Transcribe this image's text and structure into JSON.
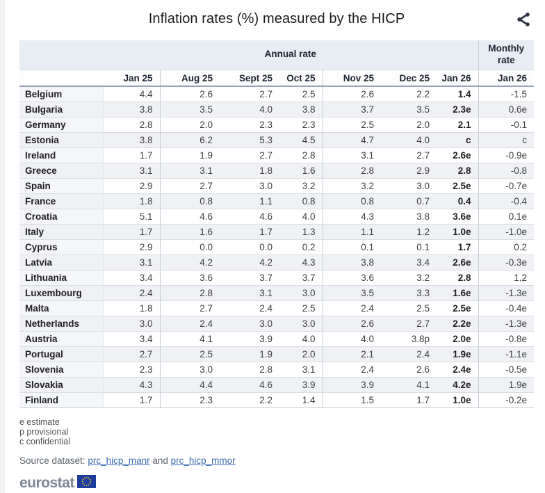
{
  "header": {
    "title": "Inflation rates (%) measured by the HICP"
  },
  "table": {
    "annual_group_label": "Annual rate",
    "monthly_group_label": "Monthly rate",
    "annual_columns": [
      "Jan 25",
      "Aug 25",
      "Sept 25",
      "Oct 25",
      "Nov 25",
      "Dec 25",
      "Jan 26"
    ],
    "monthly_column": "Jan 26",
    "rows": [
      {
        "country": "Belgium",
        "values": [
          "4.4",
          "2.6",
          "2.7",
          "2.5",
          "2.6",
          "2.2",
          "1.4",
          "-1.5"
        ]
      },
      {
        "country": "Bulgaria",
        "values": [
          "3.8",
          "3.5",
          "4.0",
          "3.8",
          "3.7",
          "3.5",
          "2.3e",
          "0.6e"
        ]
      },
      {
        "country": "Germany",
        "values": [
          "2.8",
          "2.0",
          "2.3",
          "2.3",
          "2.5",
          "2.0",
          "2.1",
          "-0.1"
        ]
      },
      {
        "country": "Estonia",
        "values": [
          "3.8",
          "6.2",
          "5.3",
          "4.5",
          "4.7",
          "4.0",
          "c",
          "c"
        ]
      },
      {
        "country": "Ireland",
        "values": [
          "1.7",
          "1.9",
          "2.7",
          "2.8",
          "3.1",
          "2.7",
          "2.6e",
          "-0.9e"
        ]
      },
      {
        "country": "Greece",
        "values": [
          "3.1",
          "3.1",
          "1.8",
          "1.6",
          "2.8",
          "2.9",
          "2.8",
          "-0.8"
        ]
      },
      {
        "country": "Spain",
        "values": [
          "2.9",
          "2.7",
          "3.0",
          "3.2",
          "3.2",
          "3.0",
          "2.5e",
          "-0.7e"
        ]
      },
      {
        "country": "France",
        "values": [
          "1.8",
          "0.8",
          "1.1",
          "0.8",
          "0.8",
          "0.7",
          "0.4",
          "-0.4"
        ]
      },
      {
        "country": "Croatia",
        "values": [
          "5.1",
          "4.6",
          "4.6",
          "4.0",
          "4.3",
          "3.8",
          "3.6e",
          "0.1e"
        ]
      },
      {
        "country": "Italy",
        "values": [
          "1.7",
          "1.6",
          "1.7",
          "1.3",
          "1.1",
          "1.2",
          "1.0e",
          "-1.0e"
        ]
      },
      {
        "country": "Cyprus",
        "values": [
          "2.9",
          "0.0",
          "0.0",
          "0.2",
          "0.1",
          "0.1",
          "1.7",
          "0.2"
        ]
      },
      {
        "country": "Latvia",
        "values": [
          "3.1",
          "4.2",
          "4.2",
          "4.3",
          "3.8",
          "3.4",
          "2.6e",
          "-0.3e"
        ]
      },
      {
        "country": "Lithuania",
        "values": [
          "3.4",
          "3.6",
          "3.7",
          "3.7",
          "3.6",
          "3.2",
          "2.8",
          "1.2"
        ]
      },
      {
        "country": "Luxembourg",
        "values": [
          "2.4",
          "2.8",
          "3.1",
          "3.0",
          "3.5",
          "3.3",
          "1.6e",
          "-1.3e"
        ]
      },
      {
        "country": "Malta",
        "values": [
          "1.8",
          "2.7",
          "2.4",
          "2.5",
          "2.4",
          "2.5",
          "2.5e",
          "-0.4e"
        ]
      },
      {
        "country": "Netherlands",
        "values": [
          "3.0",
          "2.4",
          "3.0",
          "3.0",
          "2.6",
          "2.7",
          "2.2e",
          "-1.3e"
        ]
      },
      {
        "country": "Austria",
        "values": [
          "3.4",
          "4.1",
          "3.9",
          "4.0",
          "4.0",
          "3.8p",
          "2.0e",
          "-0.8e"
        ]
      },
      {
        "country": "Portugal",
        "values": [
          "2.7",
          "2.5",
          "1.9",
          "2.0",
          "2.1",
          "2.4",
          "1.9e",
          "-1.1e"
        ]
      },
      {
        "country": "Slovenia",
        "values": [
          "2.3",
          "3.0",
          "2.8",
          "3.1",
          "2.4",
          "2.6",
          "2.4e",
          "-0.5e"
        ]
      },
      {
        "country": "Slovakia",
        "values": [
          "4.3",
          "4.4",
          "4.6",
          "3.9",
          "3.9",
          "4.1",
          "4.2e",
          "1.9e"
        ]
      },
      {
        "country": "Finland",
        "values": [
          "1.7",
          "2.3",
          "2.2",
          "1.4",
          "1.5",
          "1.7",
          "1.0e",
          "-0.2e"
        ]
      }
    ]
  },
  "footnotes": {
    "e": "e estimate",
    "p": "p provisional",
    "c": "c confidential"
  },
  "source": {
    "label": "Source dataset: ",
    "link1": "prc_hicp_manr",
    "conjunction": " and ",
    "link2": "prc_hicp_mmor"
  },
  "logo": {
    "text": "eurostat"
  },
  "colors": {
    "band_bg": "#e8ecf3",
    "stripe_bg": "#eff1f5",
    "link": "#3d6db5",
    "flag_blue": "#1e3e9e",
    "flag_stars": "#ffd617",
    "share_icon": "#2e3440"
  }
}
